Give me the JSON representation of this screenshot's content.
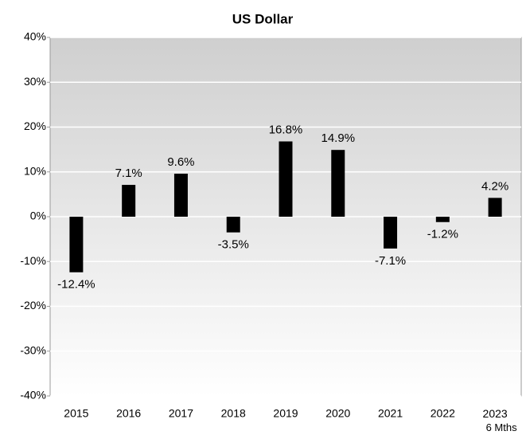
{
  "chart_data": {
    "type": "bar",
    "title": "US Dollar",
    "categories": [
      "2015",
      "2016",
      "2017",
      "2018",
      "2019",
      "2020",
      "2021",
      "2022",
      "2023\n6 Mths"
    ],
    "values": [
      -12.4,
      7.1,
      9.6,
      -3.5,
      16.8,
      14.9,
      -7.1,
      -1.2,
      4.2
    ],
    "value_labels": [
      "-12.4%",
      "7.1%",
      "9.6%",
      "-3.5%",
      "16.8%",
      "14.9%",
      "-7.1%",
      "-1.2%",
      "4.2%"
    ],
    "color": "#000000",
    "ylim": [
      -40,
      40
    ],
    "yticks": [
      {
        "value": -40,
        "label": "-40%"
      },
      {
        "value": -30,
        "label": "-30%"
      },
      {
        "value": -20,
        "label": "-20%"
      },
      {
        "value": -10,
        "label": "-10%"
      },
      {
        "value": 0,
        "label": "0%"
      },
      {
        "value": 10,
        "label": "10%"
      },
      {
        "value": 20,
        "label": "20%"
      },
      {
        "value": 30,
        "label": "30%"
      },
      {
        "value": 40,
        "label": "40%"
      }
    ],
    "grid": true
  }
}
